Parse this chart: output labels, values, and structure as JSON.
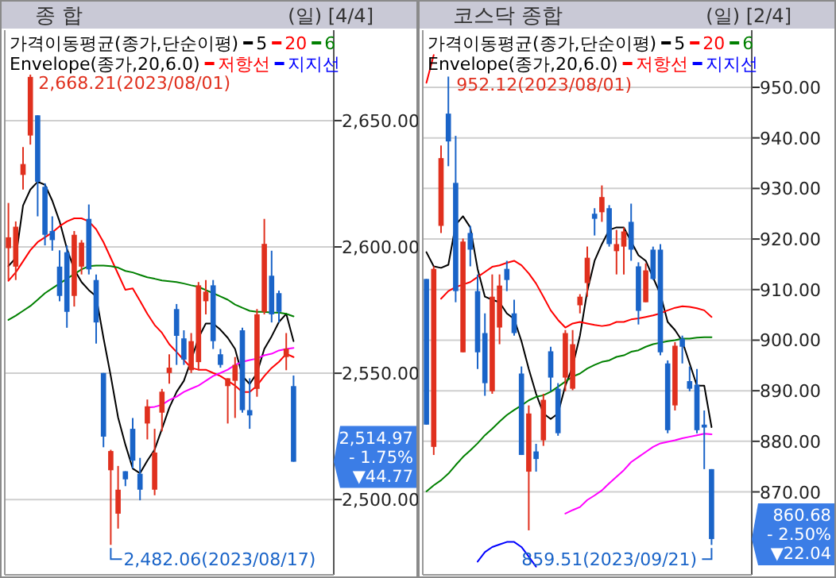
{
  "chart_data": [
    {
      "type": "candlestick",
      "title": "종     합",
      "subtitle": "(일) [4/4]",
      "legend_title": "가격이동평균(종가,단순이평)",
      "legend": "top",
      "grid": "y",
      "categories": [
        null,
        null,
        null,
        null,
        null,
        null,
        null,
        null,
        null,
        null,
        null,
        null,
        null,
        null,
        null,
        null,
        null,
        null,
        null,
        null,
        null,
        null,
        null,
        null,
        null,
        null,
        null,
        null,
        null,
        null,
        null,
        null,
        null,
        null,
        null,
        null,
        null,
        null,
        null,
        null
      ],
      "colors": [
        "#e0301e",
        "#e0301e",
        "#e0301e",
        "#e0301e",
        "#1a64c8",
        "#1a64c8",
        "#1a64c8",
        "#1a64c8",
        "#1a64c8",
        "#e0301e",
        "#e0301e",
        "#1a64c8",
        "#1a64c8",
        "#1a64c8",
        "#e0301e",
        "#e0301e",
        "#1a64c8",
        "#1a64c8",
        "#1a64c8",
        "#e0301e",
        "#e0301e",
        "#e0301e",
        "#e0301e",
        "#1a64c8",
        "#1a64c8",
        "#e0301e",
        "#e0301e",
        "#e0301e",
        "#1a64c8",
        "#1a64c8",
        "#e0301e",
        "#e0301e",
        "#1a64c8",
        "#1a64c8",
        "#e0301e",
        "#e0301e",
        "#1a64c8",
        "#1a64c8",
        "#e0301e",
        "#1a64c8"
      ],
      "ohlc": [
        [
          2599.5,
          2617.4,
          2586.9,
          2603.8
        ],
        [
          2592.2,
          2610.1,
          2586.9,
          2608
        ],
        [
          2628.5,
          2639.5,
          2622.7,
          2632.8
        ],
        [
          2644.1,
          2668.21,
          2640.5,
          2667.3
        ],
        [
          2652.1,
          2652.1,
          2612.1,
          2625.8
        ],
        [
          2623.8,
          2625.2,
          2600.6,
          2604.8
        ],
        [
          2606.3,
          2612.1,
          2598.5,
          2602.7
        ],
        [
          2592.2,
          2598.7,
          2578.5,
          2580.6
        ],
        [
          2597.9,
          2600.6,
          2568,
          2574.3
        ],
        [
          2580.6,
          2606.3,
          2576.4,
          2604.8
        ],
        [
          2592.2,
          2602.7,
          2589.1,
          2601.7
        ],
        [
          2611.1,
          2616.8,
          2589.1,
          2591.1
        ],
        [
          2586.9,
          2589.1,
          2561.7,
          2570.1
        ],
        [
          2550.1,
          2550.1,
          2520.7,
          2524.9
        ],
        [
          2511.6,
          2519.7,
          2482.06,
          2519.2
        ],
        [
          2494.4,
          2513.3,
          2488.5,
          2503.9
        ],
        [
          2511.2,
          2511.2,
          2505.3,
          2508
        ],
        [
          2528,
          2532.3,
          2512.3,
          2515.4
        ],
        [
          2510.2,
          2516.5,
          2499.7,
          2503.9
        ],
        [
          2530.1,
          2539.6,
          2523.8,
          2536.9
        ],
        [
          2503.9,
          2528,
          2501.7,
          2518.6
        ],
        [
          2534.4,
          2543.8,
          2527,
          2542.7
        ],
        [
          2550.1,
          2557.5,
          2545.9,
          2552.2
        ],
        [
          2575.4,
          2577.4,
          2553.3,
          2564.8
        ],
        [
          2563.8,
          2567,
          2553.3,
          2555.4
        ],
        [
          2551.2,
          2565.9,
          2550.1,
          2562.7
        ],
        [
          2554.4,
          2586.1,
          2551.2,
          2584.8
        ],
        [
          2578.5,
          2586.9,
          2573.3,
          2582.3
        ],
        [
          2584.8,
          2586.9,
          2559.6,
          2562.7
        ],
        [
          2557.5,
          2559.6,
          2552.2,
          2553.3
        ],
        [
          2544.9,
          2548,
          2530.1,
          2548
        ],
        [
          2547,
          2556.4,
          2532.3,
          2553.3
        ],
        [
          2567,
          2568,
          2534.4,
          2535.4
        ],
        [
          2535.4,
          2548,
          2528,
          2533.3
        ],
        [
          2543.8,
          2575.4,
          2540.7,
          2573.3
        ],
        [
          2574.3,
          2611.1,
          2573.3,
          2601.2
        ],
        [
          2588.6,
          2598.5,
          2570.1,
          2573.3
        ],
        [
          2581.7,
          2582.7,
          2570.1,
          2574.3
        ],
        [
          2556.4,
          2565.9,
          2551.2,
          2559.74
        ],
        [
          2544.9,
          2549.1,
          2514.97,
          2514.97
        ]
      ],
      "series": [
        {
          "type": "line",
          "name": "5",
          "color": "#000000",
          "values": [
            2592.4,
            2595.6,
            2616.4,
            2622.7,
            2625.8,
            2624.6,
            2618.3,
            2610.1,
            2599.3,
            2591.1,
            2586.1,
            2582.9,
            2580.4,
            2564.0,
            2548.9,
            2532.5,
            2521.7,
            2512.3,
            2510.4,
            2515.4,
            2519.8,
            2528.0,
            2536.3,
            2542.6,
            2547.0,
            2555.2,
            2564.0,
            2569.7,
            2569.7,
            2567.2,
            2564.0,
            2559.6,
            2548.9,
            2545.7,
            2550.1,
            2559.6,
            2564.6,
            2570.3,
            2573.5,
            2562.7
          ]
        },
        {
          "type": "line",
          "name": "20",
          "color": "#ff0000",
          "values": [
            2586.6,
            2589.9,
            2594.3,
            2598.7,
            2601.9,
            2603.8,
            2605.7,
            2608.2,
            2610.1,
            2611.3,
            2611.3,
            2610.1,
            2607.0,
            2601.9,
            2595.6,
            2589.3,
            2583.0,
            2583.6,
            2578.6,
            2573.5,
            2569.1,
            2566.0,
            2561.5,
            2558.4,
            2555.2,
            2552.1,
            2551.4,
            2551.4,
            2550.1,
            2548.9,
            2547.0,
            2545.1,
            2542.6,
            2542.6,
            2545.1,
            2548.9,
            2552.1,
            2554.5,
            2557.7,
            2556.4
          ]
        },
        {
          "type": "line",
          "name": "6",
          "color": "#008000",
          "values": [
            2571.1,
            2572.8,
            2574.7,
            2576.6,
            2579.1,
            2581.7,
            2583.6,
            2585.5,
            2587.4,
            2589.3,
            2591.1,
            2592.4,
            2592.6,
            2592.6,
            2592.4,
            2591.8,
            2590.5,
            2589.9,
            2588.9,
            2588.0,
            2587.4,
            2586.7,
            2586.4,
            2586.1,
            2585.5,
            2584.8,
            2584.2,
            2582.9,
            2581.7,
            2580.4,
            2579.1,
            2577.2,
            2575.9,
            2574.7,
            2574.3,
            2574.3,
            2574.0,
            2574.0,
            2573.5,
            2572.5
          ]
        },
        {
          "type": "line",
          "color": "#ff00ff",
          "values": [
            null,
            null,
            null,
            null,
            null,
            null,
            null,
            null,
            null,
            null,
            null,
            null,
            null,
            null,
            null,
            null,
            null,
            null,
            null,
            2536.4,
            2536.7,
            2537.5,
            2539.4,
            2540.7,
            2542.6,
            2543.9,
            2545.1,
            2547.0,
            2548.9,
            2550.1,
            2551.4,
            2553.3,
            2554.5,
            2555.2,
            2555.8,
            2557.1,
            2557.7,
            2559.0,
            2559.6,
            2560.0
          ]
        },
        {
          "type": "line",
          "name": "저항선",
          "color": "#ff0000",
          "values": [
            null,
            null,
            null,
            null,
            null,
            null,
            null,
            null,
            null,
            null,
            null,
            null,
            null,
            null,
            null,
            null,
            null,
            null,
            null,
            null,
            null,
            null,
            null,
            null,
            null,
            null,
            null,
            null,
            null,
            null,
            null,
            null,
            null,
            null,
            null,
            null,
            null,
            null,
            null,
            null
          ]
        },
        {
          "type": "line",
          "name": "지지선",
          "color": "#0000ff",
          "values": [
            null,
            null,
            null,
            null,
            null,
            null,
            null,
            null,
            null,
            null,
            null,
            null,
            null,
            null,
            null,
            null,
            null,
            null,
            null,
            null,
            null,
            null,
            null,
            null,
            null,
            null,
            null,
            null,
            null,
            null,
            null,
            null,
            null,
            null,
            null,
            null,
            null,
            null,
            null,
            null
          ]
        }
      ],
      "ylim": [
        2470.2,
        2685.8
      ],
      "yticks": [
        {
          "value": 2500,
          "label": "2,500.00"
        },
        {
          "value": 2550,
          "label": "2,550.00"
        },
        {
          "value": 2600,
          "label": "2,600.00"
        },
        {
          "value": 2650,
          "label": "2,650.00"
        }
      ],
      "annotations": [
        "Envelope(종가,20,6.0)",
        "2,668.21(2023/08/01)",
        "2,482.06(2023/08/17)",
        "2,514.97",
        "- 1.75%",
        "▼44.77"
      ]
    },
    {
      "type": "candlestick",
      "title": "코스닥 종합",
      "subtitle": "(일) [2/4]",
      "legend_title": "가격이동평균(종가,단순이평)",
      "legend": "top",
      "grid": "y",
      "categories": [
        null,
        null,
        null,
        null,
        null,
        null,
        null,
        null,
        null,
        null,
        null,
        null,
        null,
        null,
        null,
        null,
        null,
        null,
        null,
        null,
        null,
        null,
        null,
        null,
        null,
        null,
        null,
        null,
        null,
        null,
        null,
        null,
        null,
        null,
        null,
        null,
        null,
        null,
        null,
        null
      ],
      "colors": [
        "#1a64c8",
        "#e0301e",
        "#e0301e",
        "#1a64c8",
        "#1a64c8",
        "#e0301e",
        "#1a64c8",
        "#1a64c8",
        "#1a64c8",
        "#e0301e",
        "#e0301e",
        "#1a64c8",
        "#1a64c8",
        "#1a64c8",
        "#e0301e",
        "#1a64c8",
        "#e0301e",
        "#1a64c8",
        "#1a64c8",
        "#e0301e",
        "#e0301e",
        "#e0301e",
        "#e0301e",
        "#1a64c8",
        "#e0301e",
        "#1a64c8",
        "#e0301e",
        "#e0301e",
        "#1a64c8",
        "#1a64c8",
        "#e0301e",
        "#1a64c8",
        "#1a64c8",
        "#1a64c8",
        "#e0301e",
        "#1a64c8",
        "#1a64c8",
        "#1a64c8",
        "#1a64c8",
        "#1a64c8"
      ],
      "ohlc": [
        [
          912.1,
          912.1,
          883.3,
          883.3
        ],
        [
          878.9,
          914.6,
          877.3,
          914.1
        ],
        [
          922.6,
          938.5,
          921.2,
          936.0
        ],
        [
          944.8,
          952.12,
          934.4,
          939.3
        ],
        [
          931.1,
          940.4,
          907.5,
          909.7
        ],
        [
          897.6,
          920.1,
          897.6,
          919.5
        ],
        [
          921.2,
          922.6,
          914.6,
          917.9
        ],
        [
          909.7,
          913.0,
          894.3,
          897.6
        ],
        [
          901.4,
          905.3,
          889.0,
          891.5
        ],
        [
          889.9,
          913.0,
          889.4,
          908.6
        ],
        [
          902.5,
          913.0,
          899.2,
          910.8
        ],
        [
          914.1,
          915.7,
          909.7,
          911.9
        ],
        [
          905.3,
          908.0,
          900.9,
          901.4
        ],
        [
          893.4,
          894.8,
          877.3,
          877.3
        ],
        [
          874.0,
          887.1,
          862.4,
          885.5
        ],
        [
          878.0,
          879.5,
          874.0,
          876.5
        ],
        [
          880.2,
          889.4,
          879.1,
          888.2
        ],
        [
          897.8,
          898.7,
          889.9,
          892.6
        ],
        [
          890.4,
          891.5,
          881.1,
          881.6
        ],
        [
          892.6,
          902.0,
          889.9,
          901.4
        ],
        [
          890.4,
          902.0,
          890.1,
          899.2
        ],
        [
          906.9,
          909.1,
          905.3,
          908.6
        ],
        [
          911.3,
          918.5,
          908.6,
          916.3
        ],
        [
          925.0,
          926.1,
          920.7,
          924.0
        ],
        [
          925.3,
          930.6,
          923.4,
          928.3
        ],
        [
          926.1,
          926.7,
          918.5,
          919.0
        ],
        [
          917.6,
          921.8,
          913.0,
          919.0
        ],
        [
          918.5,
          922.3,
          913.0,
          921.5
        ],
        [
          923.4,
          927.0,
          915.7,
          917.9
        ],
        [
          914.6,
          915.4,
          903.1,
          905.8
        ],
        [
          907.5,
          915.2,
          907.5,
          913.8
        ],
        [
          917.9,
          918.5,
          911.9,
          912.1
        ],
        [
          917.9,
          919.0,
          897.0,
          897.6
        ],
        [
          895.4,
          896.0,
          881.6,
          882.2
        ],
        [
          887.1,
          899.6,
          886.1,
          898.9
        ],
        [
          900.3,
          900.9,
          895.4,
          898.7
        ],
        [
          891.9,
          894.8,
          889.9,
          890.4
        ],
        [
          891.2,
          894.3,
          881.6,
          882.2
        ],
        [
          883.3,
          886.1,
          874.5,
          882.72
        ],
        [
          874.5,
          874.5,
          859.51,
          860.68
        ]
      ],
      "series": [
        {
          "type": "line",
          "name": "5",
          "color": "#000000",
          "values": [
            917.4,
            914.6,
            914.3,
            914.9,
            922.8,
            924.5,
            922.3,
            914.1,
            908.6,
            908.0,
            907.5,
            905.3,
            904.2,
            899.8,
            894.3,
            889.4,
            885.5,
            884.4,
            885.5,
            891.0,
            894.8,
            900.9,
            909.7,
            915.7,
            919.0,
            921.8,
            922.3,
            922.3,
            919.5,
            916.8,
            915.7,
            912.4,
            909.1,
            903.6,
            902.0,
            899.8,
            895.4,
            891.0,
            891.0,
            882.8
          ]
        },
        {
          "type": "line",
          "name": "20",
          "color": "#ff0000",
          "values": [
            null,
            null,
            908.2,
            909.7,
            910.5,
            911.0,
            911.5,
            912.5,
            913.5,
            914.5,
            914.8,
            915.3,
            915.7,
            914.8,
            913.2,
            911.2,
            908.6,
            905.9,
            904.0,
            902.5,
            903.3,
            903.6,
            903.3,
            903.0,
            902.8,
            903.0,
            903.6,
            903.6,
            904.1,
            904.3,
            904.6,
            904.9,
            905.3,
            905.9,
            906.4,
            906.7,
            906.6,
            906.3,
            905.9,
            904.6
          ]
        },
        {
          "type": "line",
          "name": "6",
          "color": "#008000",
          "values": [
            870.1,
            871.3,
            872.3,
            873.6,
            875.3,
            876.9,
            878.2,
            879.6,
            881.2,
            882.5,
            883.9,
            885.2,
            886.2,
            887.1,
            888.1,
            888.8,
            889.1,
            889.8,
            890.8,
            891.8,
            892.8,
            893.4,
            894.4,
            895.1,
            895.7,
            896.0,
            896.7,
            897.0,
            897.7,
            898.0,
            898.7,
            899.2,
            899.5,
            899.8,
            900.0,
            900.3,
            900.3,
            900.5,
            900.6,
            900.6
          ]
        },
        {
          "type": "line",
          "color": "#ff00ff",
          "values": [
            null,
            null,
            null,
            null,
            null,
            null,
            null,
            null,
            null,
            null,
            null,
            null,
            null,
            null,
            null,
            null,
            null,
            null,
            null,
            865.7,
            866.4,
            867.0,
            868.4,
            869.3,
            870.3,
            871.7,
            873.0,
            874.3,
            875.9,
            876.9,
            877.9,
            878.9,
            879.6,
            879.9,
            880.2,
            880.6,
            880.9,
            881.2,
            881.5,
            881.4
          ]
        },
        {
          "type": "line",
          "name": "저항선",
          "color": "#ff0000",
          "values": [
            950.9,
            956.4,
            null,
            null,
            null,
            null,
            null,
            null,
            null,
            null,
            null,
            null,
            null,
            null,
            null,
            null,
            null,
            null,
            null,
            null,
            null,
            null,
            null,
            null,
            null,
            null,
            null,
            null,
            null,
            null,
            null,
            null,
            null,
            null,
            null,
            null,
            null,
            null,
            null,
            null
          ]
        },
        {
          "type": "line",
          "name": "지지선",
          "color": "#0000ff",
          "values": [
            null,
            null,
            null,
            null,
            null,
            null,
            null,
            856.2,
            858.1,
            859.1,
            859.6,
            860.1,
            860.1,
            859.1,
            857.2,
            855.2,
            null,
            null,
            null,
            null,
            null,
            null,
            null,
            null,
            null,
            null,
            null,
            null,
            null,
            null,
            null,
            null,
            null,
            null,
            null,
            null,
            null,
            null,
            null,
            null
          ]
        }
      ],
      "ylim": [
        853.6,
        961.3
      ],
      "yticks": [
        {
          "value": 870,
          "label": "870.00"
        },
        {
          "value": 880,
          "label": "880.00"
        },
        {
          "value": 890,
          "label": "890.00"
        },
        {
          "value": 900,
          "label": "900.00"
        },
        {
          "value": 910,
          "label": "910.00"
        },
        {
          "value": 920,
          "label": "920.00"
        },
        {
          "value": 930,
          "label": "930.00"
        },
        {
          "value": 940,
          "label": "940.00"
        },
        {
          "value": 950,
          "label": "950.00"
        }
      ],
      "annotations": [
        "Envelope(종가,20,6.0)",
        "952.12(2023/08/01)",
        "859.51(2023/09/21)",
        "860.68",
        "- 2.50%",
        "▼22.04"
      ]
    }
  ]
}
